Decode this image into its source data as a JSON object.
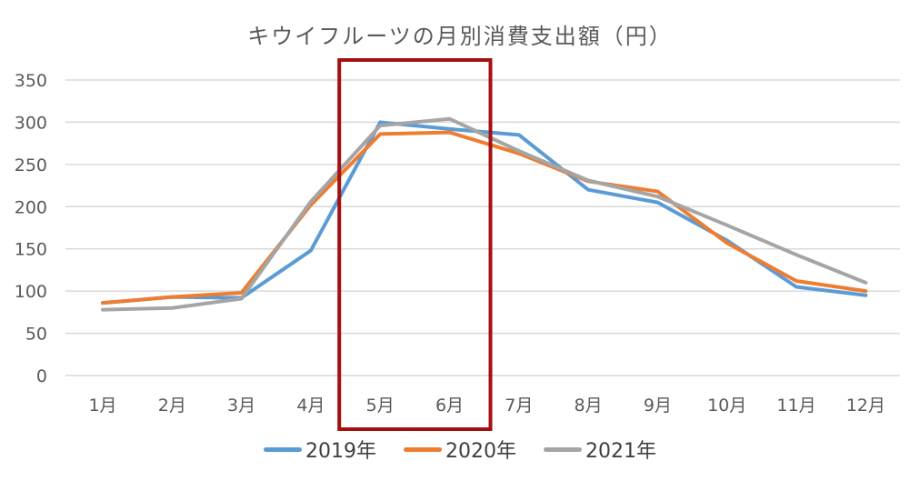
{
  "chart_data": {
    "type": "line",
    "title": "キウイフルーツの月別消費支出額（円）",
    "xlabel": "",
    "ylabel": "",
    "categories": [
      "1月",
      "2月",
      "3月",
      "4月",
      "5月",
      "6月",
      "7月",
      "8月",
      "9月",
      "10月",
      "11月",
      "12月"
    ],
    "ylim": [
      0,
      350
    ],
    "yticks": [
      0,
      50,
      100,
      150,
      200,
      250,
      300,
      350
    ],
    "grid": true,
    "legend": "bottom",
    "series": [
      {
        "name": "2019年",
        "color": "#5b9bd5",
        "values": [
          86,
          93,
          92,
          148,
          300,
          292,
          285,
          220,
          205,
          160,
          105,
          95
        ]
      },
      {
        "name": "2020年",
        "color": "#ed7d31",
        "values": [
          86,
          93,
          98,
          202,
          286,
          288,
          263,
          230,
          218,
          157,
          112,
          100
        ]
      },
      {
        "name": "2021年",
        "color": "#a5a5a5",
        "values": [
          78,
          80,
          91,
          206,
          296,
          304,
          266,
          231,
          212,
          178,
          143,
          110
        ]
      }
    ],
    "highlight": {
      "from": "5月",
      "to": "6月",
      "color": "#a50f0f"
    }
  }
}
